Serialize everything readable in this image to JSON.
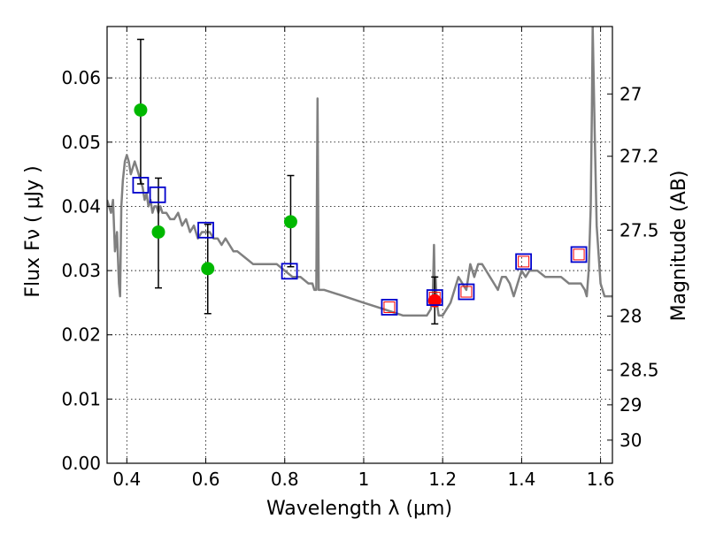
{
  "chart_data": {
    "type": "scatter",
    "xlabel": "Wavelength  λ (μm)",
    "ylabel_left": "Flux  Fν  ( μJy )",
    "ylabel_right": "Magnitude (AB)",
    "xlim": [
      0.35,
      1.63
    ],
    "ylim": [
      0.0,
      0.068
    ],
    "grid": true,
    "x_ticks": [
      0.4,
      0.6,
      0.8,
      1.0,
      1.2,
      1.4,
      1.6
    ],
    "x_tick_labels": [
      "0.4",
      "0.6",
      "0.8",
      "1",
      "1.2",
      "1.4",
      "1.6"
    ],
    "y_ticks": [
      0.0,
      0.01,
      0.02,
      0.03,
      0.04,
      0.05,
      0.06
    ],
    "y_tick_labels": [
      "0.00",
      "0.01",
      "0.02",
      "0.03",
      "0.04",
      "0.05",
      "0.06"
    ],
    "right_ticks": [
      {
        "label": "27",
        "flux": 0.0575
      },
      {
        "label": "27.2",
        "flux": 0.0478
      },
      {
        "label": "27.5",
        "flux": 0.0363
      },
      {
        "label": "28",
        "flux": 0.0229
      },
      {
        "label": "28.5",
        "flux": 0.0145
      },
      {
        "label": "29",
        "flux": 0.0091
      },
      {
        "label": "30",
        "flux": 0.0036
      }
    ],
    "colors": {
      "model": "#808080",
      "green": "#00b800",
      "red": "#ff0000",
      "square": "#0000cc",
      "inner_square": "#ff0000",
      "errorbar": "#000000"
    },
    "series": [
      {
        "kind": "model_spectrum",
        "x": [
          0.35,
          0.36,
          0.365,
          0.37,
          0.375,
          0.38,
          0.383,
          0.386,
          0.39,
          0.395,
          0.4,
          0.405,
          0.41,
          0.415,
          0.42,
          0.425,
          0.43,
          0.435,
          0.44,
          0.445,
          0.45,
          0.455,
          0.46,
          0.465,
          0.47,
          0.475,
          0.48,
          0.485,
          0.49,
          0.5,
          0.51,
          0.52,
          0.53,
          0.54,
          0.55,
          0.56,
          0.57,
          0.58,
          0.59,
          0.6,
          0.61,
          0.62,
          0.63,
          0.64,
          0.65,
          0.66,
          0.67,
          0.68,
          0.7,
          0.72,
          0.74,
          0.75,
          0.76,
          0.78,
          0.8,
          0.82,
          0.84,
          0.86,
          0.87,
          0.875,
          0.88,
          0.883,
          0.886,
          0.89,
          0.9,
          0.95,
          1.0,
          1.05,
          1.1,
          1.15,
          1.16,
          1.17,
          1.175,
          1.178,
          1.18,
          1.182,
          1.185,
          1.19,
          1.2,
          1.22,
          1.24,
          1.26,
          1.27,
          1.28,
          1.29,
          1.3,
          1.31,
          1.32,
          1.33,
          1.34,
          1.35,
          1.36,
          1.37,
          1.38,
          1.39,
          1.4,
          1.41,
          1.42,
          1.44,
          1.46,
          1.48,
          1.5,
          1.52,
          1.54,
          1.55,
          1.56,
          1.565,
          1.57,
          1.575,
          1.578,
          1.58,
          1.585,
          1.59,
          1.6,
          1.61,
          1.62,
          1.63
        ],
        "y": [
          0.041,
          0.039,
          0.041,
          0.033,
          0.036,
          0.028,
          0.026,
          0.04,
          0.044,
          0.047,
          0.048,
          0.047,
          0.045,
          0.046,
          0.047,
          0.046,
          0.045,
          0.044,
          0.043,
          0.041,
          0.042,
          0.04,
          0.041,
          0.039,
          0.04,
          0.04,
          0.039,
          0.04,
          0.039,
          0.039,
          0.038,
          0.038,
          0.039,
          0.037,
          0.038,
          0.036,
          0.037,
          0.035,
          0.036,
          0.036,
          0.036,
          0.035,
          0.035,
          0.034,
          0.035,
          0.034,
          0.033,
          0.033,
          0.032,
          0.031,
          0.031,
          0.031,
          0.031,
          0.031,
          0.03,
          0.029,
          0.029,
          0.028,
          0.028,
          0.027,
          0.027,
          0.0568,
          0.027,
          0.027,
          0.027,
          0.026,
          0.025,
          0.024,
          0.023,
          0.023,
          0.023,
          0.024,
          0.026,
          0.034,
          0.027,
          0.029,
          0.025,
          0.023,
          0.023,
          0.025,
          0.029,
          0.027,
          0.031,
          0.029,
          0.031,
          0.031,
          0.03,
          0.029,
          0.028,
          0.027,
          0.029,
          0.029,
          0.028,
          0.026,
          0.028,
          0.03,
          0.029,
          0.03,
          0.03,
          0.029,
          0.029,
          0.029,
          0.028,
          0.028,
          0.028,
          0.027,
          0.026,
          0.03,
          0.04,
          0.055,
          0.068,
          0.052,
          0.037,
          0.028,
          0.026,
          0.026,
          0.026
        ]
      },
      {
        "kind": "green_points",
        "points": [
          [
            0.435,
            0.055
          ],
          [
            0.48,
            0.036
          ],
          [
            0.605,
            0.0303
          ],
          [
            0.815,
            0.0376
          ]
        ]
      },
      {
        "kind": "red_point",
        "points": [
          [
            1.18,
            0.0253
          ]
        ]
      },
      {
        "kind": "open_squares",
        "points": [
          [
            0.435,
            0.0433
          ],
          [
            0.478,
            0.0418
          ],
          [
            0.6,
            0.0363
          ],
          [
            0.812,
            0.0299
          ],
          [
            1.065,
            0.0243
          ],
          [
            1.18,
            0.0258
          ],
          [
            1.26,
            0.0267
          ],
          [
            1.405,
            0.0314
          ],
          [
            1.545,
            0.0325
          ]
        ],
        "inner_red_from_index": 4
      },
      {
        "kind": "error_bars",
        "bars": [
          [
            0.435,
            0.0435,
            0.066
          ],
          [
            0.48,
            0.0273,
            0.0444
          ],
          [
            0.605,
            0.0233,
            0.0372
          ],
          [
            0.815,
            0.0306,
            0.0448
          ],
          [
            1.18,
            0.0217,
            0.029
          ]
        ]
      }
    ]
  }
}
